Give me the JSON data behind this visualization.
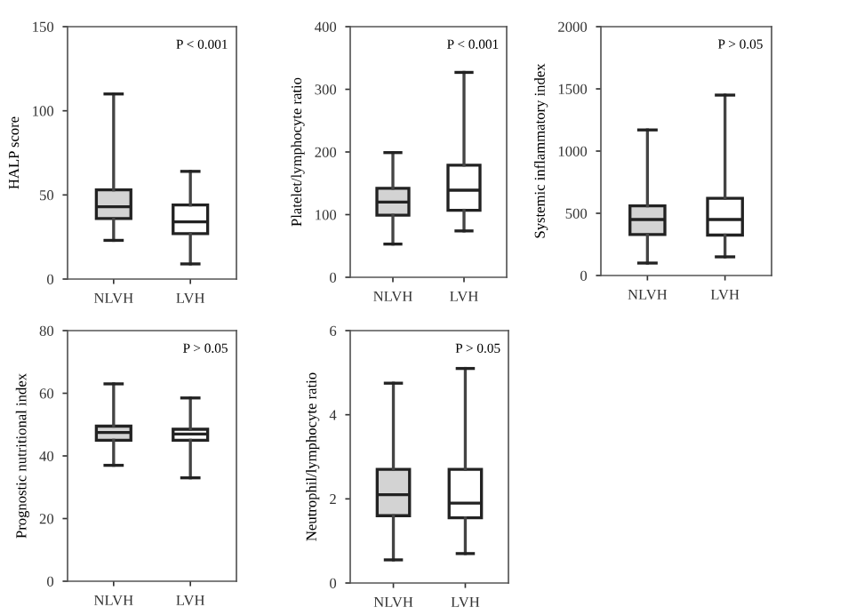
{
  "chart_data": [
    {
      "type": "box",
      "ylabel": "HALP score",
      "categories": [
        "NLVH",
        "LVH"
      ],
      "colors": [
        "#d3d3d3",
        "#ffffff"
      ],
      "ylim": [
        0,
        150
      ],
      "yticks": [
        0,
        50,
        100,
        150
      ],
      "annotations": [
        "P < 0.001"
      ],
      "grid": false,
      "legend": false,
      "boxes": [
        {
          "low": 23,
          "q1": 36,
          "median": 43,
          "q3": 53,
          "high": 110
        },
        {
          "low": 9,
          "q1": 27,
          "median": 34,
          "q3": 44,
          "high": 64
        }
      ]
    },
    {
      "type": "box",
      "ylabel": "Platelet/lymphocyte ratio",
      "categories": [
        "NLVH",
        "LVH"
      ],
      "colors": [
        "#d3d3d3",
        "#ffffff"
      ],
      "ylim": [
        0,
        400
      ],
      "yticks": [
        0,
        100,
        200,
        300,
        400
      ],
      "annotations": [
        "P < 0.001"
      ],
      "grid": false,
      "legend": false,
      "boxes": [
        {
          "low": 53,
          "q1": 99,
          "median": 120,
          "q3": 142,
          "high": 199
        },
        {
          "low": 74,
          "q1": 107,
          "median": 139,
          "q3": 179,
          "high": 327
        }
      ]
    },
    {
      "type": "box",
      "ylabel": "Systemic inflammatory index",
      "categories": [
        "NLVH",
        "LVH"
      ],
      "colors": [
        "#d3d3d3",
        "#ffffff"
      ],
      "ylim": [
        0,
        2000
      ],
      "yticks": [
        0,
        500,
        1000,
        1500,
        2000
      ],
      "annotations": [
        "P > 0.05"
      ],
      "grid": false,
      "legend": false,
      "boxes": [
        {
          "low": 100,
          "q1": 330,
          "median": 450,
          "q3": 560,
          "high": 1170
        },
        {
          "low": 150,
          "q1": 325,
          "median": 450,
          "q3": 620,
          "high": 1450
        }
      ]
    },
    {
      "type": "box",
      "ylabel": "Prognostic nutritional index",
      "categories": [
        "NLVH",
        "LVH"
      ],
      "colors": [
        "#d3d3d3",
        "#ffffff"
      ],
      "ylim": [
        0,
        80
      ],
      "yticks": [
        0,
        20,
        40,
        60,
        80
      ],
      "annotations": [
        "P > 0.05"
      ],
      "grid": false,
      "legend": false,
      "boxes": [
        {
          "low": 37,
          "q1": 45,
          "median": 47.5,
          "q3": 49.5,
          "high": 63
        },
        {
          "low": 33,
          "q1": 45,
          "median": 47,
          "q3": 48.5,
          "high": 58.5
        }
      ]
    },
    {
      "type": "box",
      "ylabel": "Neutrophil/lymphocyte ratio",
      "categories": [
        "NLVH",
        "LVH"
      ],
      "colors": [
        "#d3d3d3",
        "#ffffff"
      ],
      "ylim": [
        0,
        6
      ],
      "yticks": [
        0,
        2,
        4,
        6
      ],
      "annotations": [
        "P > 0.05"
      ],
      "grid": false,
      "legend": false,
      "boxes": [
        {
          "low": 0.55,
          "q1": 1.6,
          "median": 2.1,
          "q3": 2.7,
          "high": 4.75
        },
        {
          "low": 0.7,
          "q1": 1.55,
          "median": 1.9,
          "q3": 2.7,
          "high": 5.1
        }
      ]
    }
  ]
}
